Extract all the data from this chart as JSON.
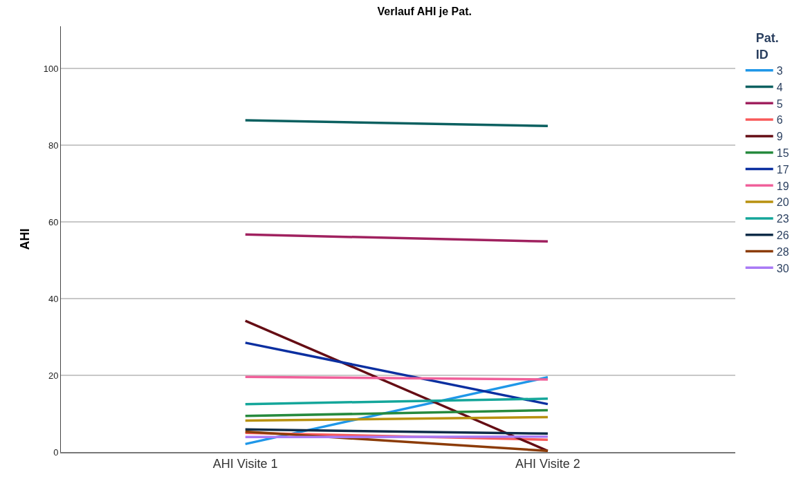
{
  "chart_data": {
    "type": "line",
    "title": "Verlauf AHI je Pat.",
    "ylabel": "AHI",
    "legend_title": "Pat. ID",
    "categories": [
      "AHI Visite 1",
      "AHI Visite 2"
    ],
    "series": [
      {
        "name": "3",
        "color": "#1f97e8",
        "values": [
          2.1,
          19.5
        ]
      },
      {
        "name": "4",
        "color": "#0b6060",
        "values": [
          86.5,
          85.0
        ]
      },
      {
        "name": "5",
        "color": "#a0215f",
        "values": [
          56.7,
          54.9
        ]
      },
      {
        "name": "6",
        "color": "#f85a5a",
        "values": [
          5.0,
          3.2
        ]
      },
      {
        "name": "9",
        "color": "#650d14",
        "values": [
          34.2,
          0.3
        ]
      },
      {
        "name": "15",
        "color": "#268a3e",
        "values": [
          9.4,
          10.9
        ]
      },
      {
        "name": "17",
        "color": "#0b2fa0",
        "values": [
          28.5,
          12.5
        ]
      },
      {
        "name": "19",
        "color": "#f0609a",
        "values": [
          19.6,
          18.9
        ]
      },
      {
        "name": "20",
        "color": "#b8910f",
        "values": [
          8.2,
          9.1
        ]
      },
      {
        "name": "23",
        "color": "#14a69a",
        "values": [
          12.5,
          13.9
        ]
      },
      {
        "name": "26",
        "color": "#0e2c48",
        "values": [
          5.9,
          4.8
        ]
      },
      {
        "name": "28",
        "color": "#8c3c08",
        "values": [
          5.3,
          0.3
        ]
      },
      {
        "name": "30",
        "color": "#a97af5",
        "values": [
          3.9,
          4.0
        ]
      }
    ],
    "ylim": [
      0,
      111
    ],
    "yticks": [
      0,
      20,
      40,
      60,
      80,
      100
    ],
    "grid": "y",
    "legend": "top right",
    "marker": "none",
    "line_style": "solid"
  }
}
